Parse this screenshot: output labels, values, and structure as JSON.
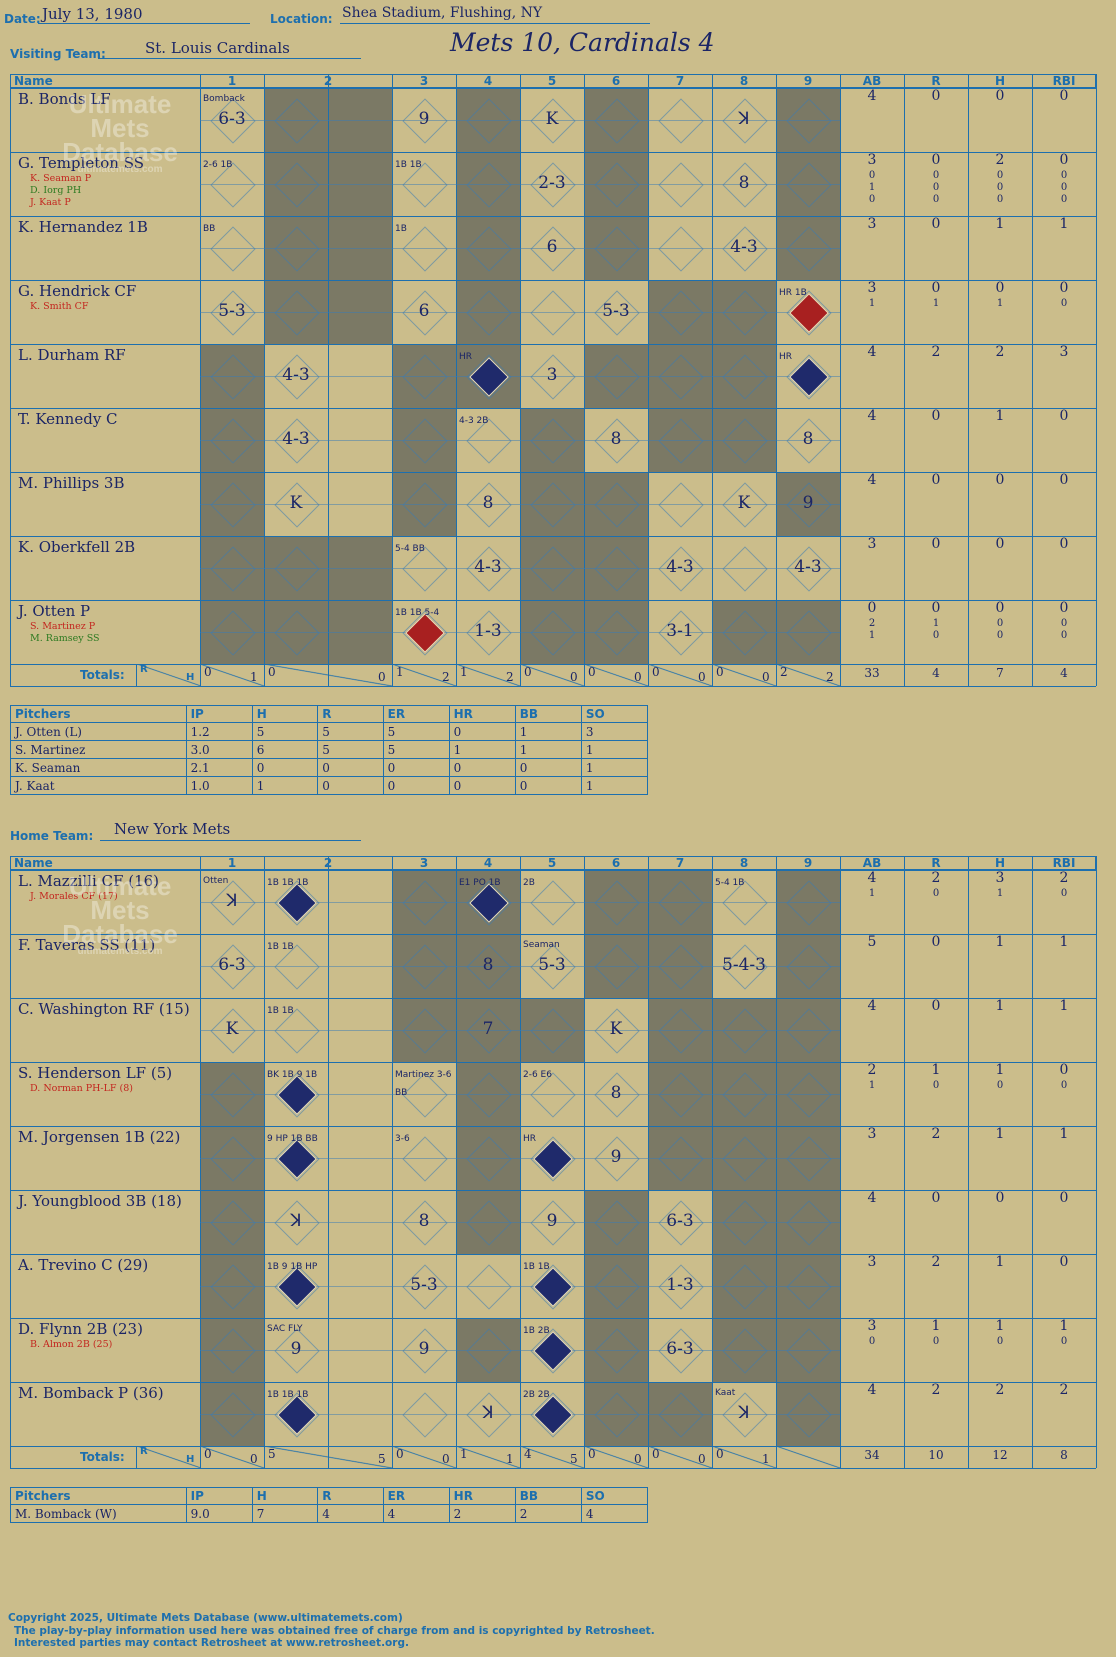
{
  "header": {
    "date_label": "Date:",
    "date": "July 13, 1980",
    "location_label": "Location:",
    "location": "Shea Stadium, Flushing, NY",
    "visiting_label": "Visiting Team:",
    "visiting_team": "St. Louis Cardinals",
    "title": "Mets 10, Cardinals 4",
    "home_label": "Home Team:",
    "home_team": "New York Mets"
  },
  "watermark": {
    "line1": "Ultimate",
    "line2": "Mets",
    "line3": "Database",
    "url": "ultimatemets.com"
  },
  "columns": {
    "name": "Name",
    "innings": [
      "1",
      "2",
      "3",
      "4",
      "5",
      "6",
      "7",
      "8",
      "9"
    ],
    "stats": [
      "AB",
      "R",
      "H",
      "RBI"
    ]
  },
  "totals_label": "Totals:",
  "rh": {
    "r": "R",
    "h": "H"
  },
  "visitors": {
    "batters": [
      {
        "name": "B. Bonds LF",
        "subs": [],
        "stats": [
          [
            "4",
            "0",
            "0",
            "0"
          ]
        ]
      },
      {
        "name": "G. Templeton SS",
        "subs": [
          {
            "name": "K. Seaman P",
            "color": "red"
          },
          {
            "name": "D. Iorg PH",
            "color": "green"
          },
          {
            "name": "J. Kaat P",
            "color": "red"
          }
        ],
        "stats": [
          [
            "3",
            "0",
            "2",
            "0"
          ],
          [
            "0",
            "0",
            "0",
            "0"
          ],
          [
            "1",
            "0",
            "0",
            "0"
          ],
          [
            "0",
            "0",
            "0",
            "0"
          ]
        ]
      },
      {
        "name": "K. Hernandez 1B",
        "subs": [],
        "stats": [
          [
            "3",
            "0",
            "1",
            "1"
          ]
        ]
      },
      {
        "name": "G. Hendrick CF",
        "subs": [
          {
            "name": "K. Smith CF",
            "color": "red"
          }
        ],
        "stats": [
          [
            "3",
            "0",
            "0",
            "0"
          ],
          [
            "1",
            "1",
            "1",
            "0"
          ]
        ]
      },
      {
        "name": "L. Durham RF",
        "subs": [],
        "stats": [
          [
            "4",
            "2",
            "2",
            "3"
          ]
        ]
      },
      {
        "name": "T. Kennedy C",
        "subs": [],
        "stats": [
          [
            "4",
            "0",
            "1",
            "0"
          ]
        ]
      },
      {
        "name": "M. Phillips 3B",
        "subs": [],
        "stats": [
          [
            "4",
            "0",
            "0",
            "0"
          ]
        ]
      },
      {
        "name": "K. Oberkfell 2B",
        "subs": [],
        "stats": [
          [
            "3",
            "0",
            "0",
            "0"
          ]
        ]
      },
      {
        "name": "J. Otten P",
        "subs": [
          {
            "name": "S. Martinez P",
            "color": "red"
          },
          {
            "name": "M. Ramsey SS",
            "color": "green"
          }
        ],
        "stats": [
          [
            "0",
            "0",
            "0",
            "0"
          ],
          [
            "2",
            "1",
            "0",
            "0"
          ],
          [
            "1",
            "0",
            "0",
            "0"
          ]
        ]
      }
    ],
    "totals_inning": [
      [
        "0",
        "1"
      ],
      [
        "0",
        "0"
      ],
      [
        "1",
        "2"
      ],
      [
        "1",
        "2"
      ],
      [
        "0",
        "0"
      ],
      [
        "0",
        "0"
      ],
      [
        "0",
        "0"
      ],
      [
        "0",
        "0"
      ],
      [
        "2",
        "2"
      ]
    ],
    "totals_stats": [
      "33",
      "4",
      "7",
      "4"
    ],
    "pitchers_header": [
      "Pitchers",
      "IP",
      "H",
      "R",
      "ER",
      "HR",
      "BB",
      "SO"
    ],
    "pitchers": [
      [
        "J. Otten (L)",
        "1.2",
        "5",
        "5",
        "5",
        "0",
        "1",
        "3"
      ],
      [
        "S. Martinez",
        "3.0",
        "6",
        "5",
        "5",
        "1",
        "1",
        "1"
      ],
      [
        "K. Seaman",
        "2.1",
        "0",
        "0",
        "0",
        "0",
        "0",
        "1"
      ],
      [
        "J. Kaat",
        "1.0",
        "1",
        "0",
        "0",
        "0",
        "0",
        "1"
      ]
    ],
    "plays": [
      {
        "r": 0,
        "i": 0,
        "t": "6-3",
        "n": "Bomback",
        "nc": "red"
      },
      {
        "r": 0,
        "i": 2,
        "t": "9"
      },
      {
        "r": 0,
        "i": 4,
        "t": "K"
      },
      {
        "r": 0,
        "i": 7,
        "t": "ꓘ"
      },
      {
        "r": 1,
        "i": 0,
        "t": "",
        "n": "2-6 1B"
      },
      {
        "r": 1,
        "i": 2,
        "t": "",
        "n": "1B 1B"
      },
      {
        "r": 1,
        "i": 4,
        "t": "2-3"
      },
      {
        "r": 1,
        "i": 7,
        "t": "8",
        "c": "green"
      },
      {
        "r": 2,
        "i": 0,
        "t": "",
        "n": "BB"
      },
      {
        "r": 2,
        "i": 2,
        "t": "",
        "n": "1B"
      },
      {
        "r": 2,
        "i": 4,
        "t": "6"
      },
      {
        "r": 2,
        "i": 7,
        "t": "4-3"
      },
      {
        "r": 3,
        "i": 0,
        "t": "5-3"
      },
      {
        "r": 3,
        "i": 2,
        "t": "6"
      },
      {
        "r": 3,
        "i": 5,
        "t": "5-3"
      },
      {
        "r": 3,
        "i": 8,
        "t": "",
        "n": "HR 1B",
        "d": "red"
      },
      {
        "r": 4,
        "i": 1,
        "t": "4-3"
      },
      {
        "r": 4,
        "i": 4,
        "t": "3"
      },
      {
        "r": 4,
        "i": 3,
        "t": "",
        "n": "HR",
        "d": "blue"
      },
      {
        "r": 4,
        "i": 8,
        "t": "",
        "n": "HR",
        "d": "blue"
      },
      {
        "r": 5,
        "i": 1,
        "t": "4-3"
      },
      {
        "r": 5,
        "i": 3,
        "t": "",
        "n": "4-3 2B"
      },
      {
        "r": 5,
        "i": 5,
        "t": "8"
      },
      {
        "r": 5,
        "i": 8,
        "t": "8"
      },
      {
        "r": 6,
        "i": 1,
        "t": "K"
      },
      {
        "r": 6,
        "i": 3,
        "t": "8"
      },
      {
        "r": 6,
        "i": 7,
        "t": "K"
      },
      {
        "r": 6,
        "i": 8,
        "t": "9"
      },
      {
        "r": 7,
        "i": 2,
        "t": "",
        "n": "5-4 BB"
      },
      {
        "r": 7,
        "i": 3,
        "t": "4-3"
      },
      {
        "r": 7,
        "i": 6,
        "t": "4-3"
      },
      {
        "r": 7,
        "i": 8,
        "t": "4-3"
      },
      {
        "r": 8,
        "i": 2,
        "t": "",
        "n": "1B 1B 5-4",
        "d": "red"
      },
      {
        "r": 8,
        "i": 3,
        "t": "1-3",
        "c": "red"
      },
      {
        "r": 8,
        "i": 6,
        "t": "3-1",
        "c": "green"
      }
    ]
  },
  "home": {
    "batters": [
      {
        "name": "L. Mazzilli CF (16)",
        "subs": [
          {
            "name": "J. Morales CF (17)",
            "color": "red"
          }
        ],
        "stats": [
          [
            "4",
            "2",
            "3",
            "2"
          ],
          [
            "1",
            "0",
            "1",
            "0"
          ]
        ]
      },
      {
        "name": "F. Taveras SS (11)",
        "subs": [],
        "stats": [
          [
            "5",
            "0",
            "1",
            "1"
          ]
        ]
      },
      {
        "name": "C. Washington RF (15)",
        "subs": [],
        "stats": [
          [
            "4",
            "0",
            "1",
            "1"
          ]
        ]
      },
      {
        "name": "S. Henderson LF (5)",
        "subs": [
          {
            "name": "D. Norman PH-LF (8)",
            "color": "red"
          }
        ],
        "stats": [
          [
            "2",
            "1",
            "1",
            "0"
          ],
          [
            "1",
            "0",
            "0",
            "0"
          ]
        ]
      },
      {
        "name": "M. Jorgensen 1B (22)",
        "subs": [],
        "stats": [
          [
            "3",
            "2",
            "1",
            "1"
          ]
        ]
      },
      {
        "name": "J. Youngblood 3B (18)",
        "subs": [],
        "stats": [
          [
            "4",
            "0",
            "0",
            "0"
          ]
        ]
      },
      {
        "name": "A. Trevino C (29)",
        "subs": [],
        "stats": [
          [
            "3",
            "2",
            "1",
            "0"
          ]
        ]
      },
      {
        "name": "D. Flynn 2B (23)",
        "subs": [
          {
            "name": "B. Almon 2B (25)",
            "color": "red"
          }
        ],
        "stats": [
          [
            "3",
            "1",
            "1",
            "1"
          ],
          [
            "0",
            "0",
            "0",
            "0"
          ]
        ]
      },
      {
        "name": "M. Bomback P (36)",
        "subs": [],
        "stats": [
          [
            "4",
            "2",
            "2",
            "2"
          ]
        ]
      }
    ],
    "totals_inning": [
      [
        "0",
        "0"
      ],
      [
        "5",
        "5"
      ],
      [
        "0",
        "0"
      ],
      [
        "1",
        "1"
      ],
      [
        "4",
        "5"
      ],
      [
        "0",
        "0"
      ],
      [
        "0",
        "0"
      ],
      [
        "0",
        "1"
      ],
      [
        "",
        ""
      ]
    ],
    "totals_stats": [
      "34",
      "10",
      "12",
      "8"
    ],
    "pitchers_header": [
      "Pitchers",
      "IP",
      "H",
      "R",
      "ER",
      "HR",
      "BB",
      "SO"
    ],
    "pitchers": [
      [
        "M. Bomback (W)",
        "9.0",
        "7",
        "4",
        "4",
        "2",
        "2",
        "4"
      ]
    ],
    "plays": [
      {
        "r": 0,
        "i": 0,
        "t": "ꓘ",
        "n": "Otten",
        "nc": "red"
      },
      {
        "r": 0,
        "i": 1,
        "t": "",
        "n": "1B 1B 1B",
        "d": "blue"
      },
      {
        "r": 0,
        "i": 3,
        "t": "",
        "n": "E1 PO 1B",
        "d": "blue"
      },
      {
        "r": 0,
        "i": 4,
        "t": "",
        "n": "2B"
      },
      {
        "r": 0,
        "i": 7,
        "t": "",
        "n": "5-4 1B"
      },
      {
        "r": 1,
        "i": 0,
        "t": "6-3"
      },
      {
        "r": 1,
        "i": 1,
        "t": "",
        "n": "1B 1B"
      },
      {
        "r": 1,
        "i": 3,
        "t": "8"
      },
      {
        "r": 1,
        "i": 4,
        "t": "5-3",
        "n": "Seaman",
        "nc": "red"
      },
      {
        "r": 1,
        "i": 7,
        "t": "5-4-3"
      },
      {
        "r": 2,
        "i": 0,
        "t": "K"
      },
      {
        "r": 2,
        "i": 1,
        "t": "",
        "n": "1B 1B"
      },
      {
        "r": 2,
        "i": 3,
        "t": "7"
      },
      {
        "r": 2,
        "i": 5,
        "t": "K"
      },
      {
        "r": 3,
        "i": 1,
        "t": "",
        "n": "BK 1B 9 1B",
        "d": "blue"
      },
      {
        "r": 3,
        "i": 2,
        "t": "",
        "n": "Martinez 3-6 BB"
      },
      {
        "r": 3,
        "i": 4,
        "t": "",
        "n": "2-6 E6"
      },
      {
        "r": 3,
        "i": 5,
        "t": "8",
        "c": "red"
      },
      {
        "r": 4,
        "i": 1,
        "t": "",
        "n": "9 HP 1B BB",
        "d": "blue"
      },
      {
        "r": 4,
        "i": 2,
        "t": "",
        "n": "3-6"
      },
      {
        "r": 4,
        "i": 4,
        "t": "",
        "n": "HR",
        "d": "blue"
      },
      {
        "r": 4,
        "i": 5,
        "t": "9"
      },
      {
        "r": 5,
        "i": 1,
        "t": "ꓘ"
      },
      {
        "r": 5,
        "i": 2,
        "t": "8"
      },
      {
        "r": 5,
        "i": 4,
        "t": "9"
      },
      {
        "r": 5,
        "i": 6,
        "t": "6-3"
      },
      {
        "r": 6,
        "i": 1,
        "t": "",
        "n": "1B 9 1B HP",
        "d": "blue"
      },
      {
        "r": 6,
        "i": 2,
        "t": "5-3"
      },
      {
        "r": 6,
        "i": 4,
        "t": "",
        "n": "1B 1B",
        "d": "blue"
      },
      {
        "r": 6,
        "i": 6,
        "t": "1-3"
      },
      {
        "r": 7,
        "i": 1,
        "t": "9",
        "n": "SAC FLY"
      },
      {
        "r": 7,
        "i": 2,
        "t": "9"
      },
      {
        "r": 7,
        "i": 4,
        "t": "",
        "n": "1B 2B",
        "d": "blue"
      },
      {
        "r": 7,
        "i": 6,
        "t": "6-3"
      },
      {
        "r": 8,
        "i": 1,
        "t": "",
        "n": "1B 1B 1B",
        "d": "blue"
      },
      {
        "r": 8,
        "i": 3,
        "t": "ꓘ"
      },
      {
        "r": 8,
        "i": 4,
        "t": "",
        "n": "2B 2B",
        "d": "blue"
      },
      {
        "r": 8,
        "i": 7,
        "t": "ꓘ",
        "n": "Kaat",
        "nc": "red"
      }
    ]
  },
  "footer": {
    "line1": "Copyright 2025, Ultimate Mets Database (www.ultimatemets.com)",
    "line2": "The play-by-play information used here was obtained free of charge from and is copyrighted by Retrosheet.",
    "line3": "Interested parties may contact Retrosheet at www.retrosheet.org."
  },
  "colors": {
    "accent": "#1d6fae",
    "ink": "#1b2566",
    "paper": "#cbbd8b",
    "shade": "#7b7965",
    "red": "#c3261f",
    "green": "#2d7a21"
  }
}
